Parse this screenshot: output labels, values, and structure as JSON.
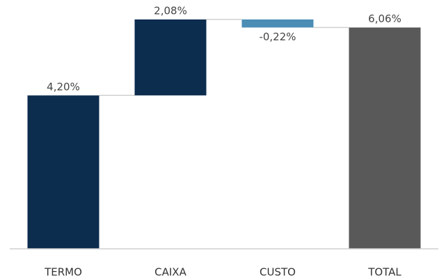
{
  "chart_data": {
    "type": "waterfall",
    "categories": [
      "TERMO",
      "CAIXA",
      "CUSTO",
      "TOTAL"
    ],
    "values": [
      4.2,
      2.08,
      -0.22,
      6.06
    ],
    "value_labels": [
      "4,20%",
      "2,08%",
      "-0,22%",
      "6,06%"
    ],
    "is_total": [
      false,
      false,
      false,
      true
    ],
    "colors": [
      "#0d2d4f",
      "#0d2d4f",
      "#4a8db5",
      "#595959"
    ]
  }
}
